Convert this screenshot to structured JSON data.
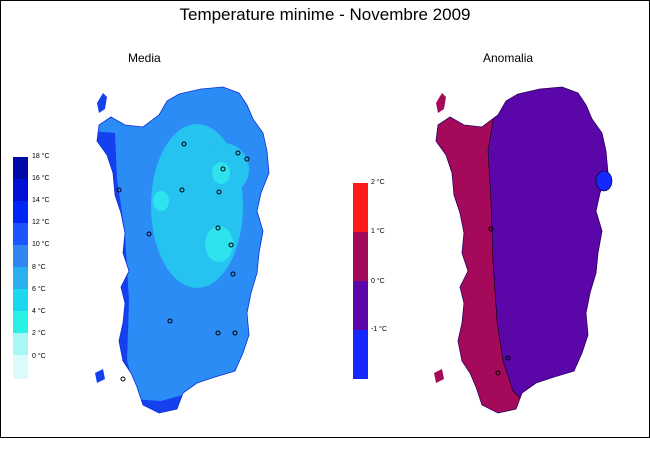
{
  "title": "Temperature minime - Novembre 2009",
  "panels": {
    "left": {
      "title": "Media",
      "legend": {
        "labels": [
          "18 °C",
          "16 °C",
          "14 °C",
          "12 °C",
          "10 °C",
          "8 °C",
          "6 °C",
          "4 °C",
          "2 °C",
          "0 °C"
        ],
        "colors": [
          "#000aa8",
          "#0010d4",
          "#0026f5",
          "#1a55ff",
          "#2f86f2",
          "#2ab0f0",
          "#1ad8f0",
          "#2af0e6",
          "#a6f8f4",
          "#dcfcfc"
        ]
      }
    },
    "right": {
      "title": "Anomalia",
      "legend": {
        "labels": [
          "2 °C",
          "1 °C",
          "0 °C",
          "-1 °C"
        ],
        "colors": [
          "#ff1a1a",
          "#a50a5a",
          "#5a06a8",
          "#1428ff"
        ]
      }
    }
  },
  "colors": {
    "media_base": "#2b8cf6",
    "media_light": "#26c2f0",
    "media_cyan": "#2ee3ee",
    "media_dark": "#1440f0",
    "anomaly_west": "#a50a5a",
    "anomaly_east": "#5a06a8",
    "anomaly_spot": "#1428ff"
  }
}
